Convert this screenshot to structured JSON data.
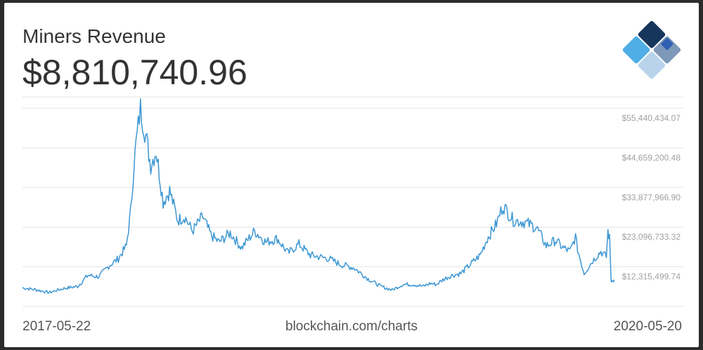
{
  "header": {
    "title": "Miners Revenue",
    "current_value": "$8,810,740.96"
  },
  "footer": {
    "start_date": "2017-05-22",
    "source": "blockchain.com/charts",
    "end_date": "2020-05-20"
  },
  "colors": {
    "line": "#3d97d3",
    "grid": "#e3e3e3",
    "tick_label": "#a0a0a0",
    "logo_dark": "#16365c",
    "logo_mid": "#7d98b8",
    "logo_blue": "#2f5fb4",
    "logo_light": "#b9d3ec",
    "logo_sky": "#4eaee5"
  },
  "logo": {
    "icon": "blockchain-logo-icon"
  },
  "chart_data": {
    "type": "line",
    "title": "Miners Revenue",
    "xlabel": "",
    "ylabel": "",
    "x_range": [
      "2017-05-22",
      "2020-05-20"
    ],
    "ylim": [
      1534266,
      58500000
    ],
    "y_ticks": [
      12315499.74,
      23096733.32,
      33877966.9,
      44659200.48,
      55440434.07
    ],
    "y_tick_labels": [
      "$12,315,499.74",
      "$23,096,733.32",
      "$33,877,966.90",
      "$44,659,200.48",
      "$55,440,434.07"
    ],
    "tick_position": "right",
    "grid": true,
    "legend": "none",
    "series": [
      {
        "x": [
          "2017-05-22",
          "2017-06-15",
          "2017-07-10",
          "2017-08-05",
          "2017-09-01",
          "2017-09-20",
          "2017-10-10",
          "2017-10-28",
          "2017-11-15",
          "2017-11-30",
          "2017-12-08",
          "2017-12-14",
          "2017-12-18",
          "2017-12-26",
          "2018-01-05",
          "2018-01-14",
          "2018-01-24",
          "2018-02-06",
          "2018-02-18",
          "2018-03-05",
          "2018-03-18",
          "2018-04-01",
          "2018-04-20",
          "2018-05-05",
          "2018-05-20",
          "2018-06-10",
          "2018-07-01",
          "2018-07-25",
          "2018-08-15",
          "2018-09-05",
          "2018-09-25",
          "2018-10-15",
          "2018-11-05",
          "2018-11-22",
          "2018-12-10",
          "2018-12-30",
          "2019-01-25",
          "2019-02-20",
          "2019-03-15",
          "2019-04-05",
          "2019-04-25",
          "2019-05-15",
          "2019-06-01",
          "2019-06-15",
          "2019-06-26",
          "2019-07-10",
          "2019-07-25",
          "2019-08-10",
          "2019-08-28",
          "2019-09-15",
          "2019-09-28",
          "2019-10-15",
          "2019-10-27",
          "2019-11-15",
          "2019-12-05",
          "2019-12-28",
          "2020-01-15",
          "2020-02-01",
          "2020-02-15",
          "2020-02-28",
          "2020-03-09",
          "2020-03-13",
          "2020-03-25",
          "2020-04-10",
          "2020-04-25",
          "2020-05-05",
          "2020-05-08",
          "2020-05-11",
          "2020-05-14",
          "2020-05-20"
        ],
        "y": [
          6600000,
          6100000,
          5300000,
          6400000,
          7000000,
          10000000,
          9600000,
          12500000,
          14500000,
          18000000,
          27500000,
          40000000,
          46000000,
          55440434,
          48000000,
          40000000,
          44000000,
          30000000,
          33000000,
          25000000,
          26000000,
          22000000,
          26000000,
          21000000,
          19000000,
          21500000,
          17500000,
          22000000,
          19000000,
          20000000,
          16000000,
          18500000,
          15500000,
          15000000,
          14500000,
          13000000,
          12000000,
          9000000,
          7000000,
          6000000,
          7500000,
          7500000,
          7000000,
          7800000,
          7500000,
          9000000,
          10000000,
          10500000,
          13000000,
          15500000,
          20000000,
          24000000,
          29000000,
          25000000,
          24500000,
          23000000,
          18000000,
          19500000,
          17500000,
          16500000,
          20500000,
          17000000,
          10500000,
          14000000,
          16500000,
          15000000,
          22000000,
          20000000,
          8500000,
          8810741
        ]
      }
    ]
  }
}
